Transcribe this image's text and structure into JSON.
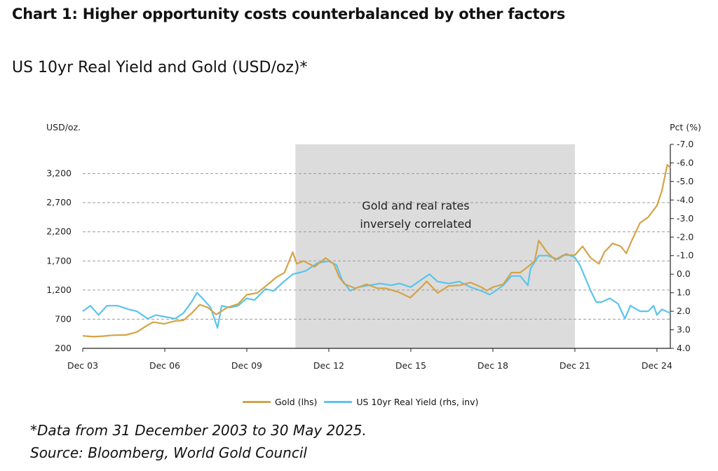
{
  "header": {
    "title": "Chart 1: Higher opportunity costs counterbalanced by other factors",
    "subtitle": "US 10yr Real Yield and Gold (USD/oz)*"
  },
  "footer": {
    "footnote": "*Data from 31 December 2003 to 30 May 2025.",
    "source": "Source: Bloomberg, World Gold Council"
  },
  "chart_data": {
    "type": "line",
    "left_axis_label": "USD/oz.",
    "right_axis_label": "Pct (%)",
    "x_ticks": [
      "Dec 03",
      "Dec 06",
      "Dec 09",
      "Dec 12",
      "Dec 15",
      "Dec 18",
      "Dec 21",
      "Dec 24"
    ],
    "x_tick_years": [
      2003.92,
      2006.92,
      2009.92,
      2012.92,
      2015.92,
      2018.92,
      2021.92,
      2024.92
    ],
    "x_range": [
      2003.92,
      2025.41
    ],
    "ylim_left": [
      200,
      3700
    ],
    "y_ticks_left": [
      "200",
      "700",
      "1,200",
      "1,700",
      "2,200",
      "2,700",
      "3,200"
    ],
    "y_tick_values_left": [
      200,
      700,
      1200,
      1700,
      2200,
      2700,
      3200
    ],
    "ylim_right": [
      4.0,
      -7.0
    ],
    "y_ticks_right": [
      "4.0",
      "3.0",
      "2.0",
      "1.0",
      "0.0",
      "-1.0",
      "-2.0",
      "-3.0",
      "-4.0",
      "-5.0",
      "-6.0",
      "-7.0"
    ],
    "y_tick_values_right": [
      4,
      3,
      2,
      1,
      0,
      -1,
      -2,
      -3,
      -4,
      -5,
      -6,
      -7
    ],
    "right_axis_inverted": true,
    "grid": "horizontal dashed",
    "shaded_region": {
      "start": 2011.7,
      "end": 2021.92,
      "color": "#dcdcdc"
    },
    "annotation": {
      "lines": [
        "Gold and real rates",
        "inversely correlated"
      ],
      "x": 2016.1,
      "y_lhs": 2580
    },
    "legend_position": "bottom-center",
    "series": [
      {
        "name": "Gold (lhs)",
        "axis": "left",
        "color": "#d4a348",
        "points": [
          [
            2003.92,
            415
          ],
          [
            2004.3,
            400
          ],
          [
            2004.7,
            410
          ],
          [
            2005.0,
            425
          ],
          [
            2005.5,
            430
          ],
          [
            2005.9,
            480
          ],
          [
            2006.3,
            600
          ],
          [
            2006.5,
            650
          ],
          [
            2006.9,
            620
          ],
          [
            2007.3,
            670
          ],
          [
            2007.6,
            680
          ],
          [
            2007.9,
            800
          ],
          [
            2008.2,
            950
          ],
          [
            2008.5,
            900
          ],
          [
            2008.8,
            780
          ],
          [
            2009.2,
            900
          ],
          [
            2009.6,
            960
          ],
          [
            2009.92,
            1120
          ],
          [
            2010.3,
            1150
          ],
          [
            2010.7,
            1300
          ],
          [
            2011.0,
            1420
          ],
          [
            2011.3,
            1500
          ],
          [
            2011.6,
            1850
          ],
          [
            2011.75,
            1650
          ],
          [
            2012.0,
            1700
          ],
          [
            2012.4,
            1600
          ],
          [
            2012.8,
            1750
          ],
          [
            2013.1,
            1650
          ],
          [
            2013.3,
            1420
          ],
          [
            2013.5,
            1300
          ],
          [
            2013.9,
            1230
          ],
          [
            2014.3,
            1300
          ],
          [
            2014.7,
            1230
          ],
          [
            2015.0,
            1230
          ],
          [
            2015.5,
            1160
          ],
          [
            2015.9,
            1070
          ],
          [
            2016.3,
            1250
          ],
          [
            2016.5,
            1350
          ],
          [
            2016.9,
            1150
          ],
          [
            2017.3,
            1270
          ],
          [
            2017.7,
            1280
          ],
          [
            2018.1,
            1330
          ],
          [
            2018.5,
            1250
          ],
          [
            2018.7,
            1190
          ],
          [
            2018.92,
            1250
          ],
          [
            2019.3,
            1300
          ],
          [
            2019.6,
            1500
          ],
          [
            2019.92,
            1500
          ],
          [
            2020.2,
            1600
          ],
          [
            2020.45,
            1700
          ],
          [
            2020.6,
            2050
          ],
          [
            2020.9,
            1850
          ],
          [
            2021.2,
            1720
          ],
          [
            2021.5,
            1800
          ],
          [
            2021.92,
            1800
          ],
          [
            2022.2,
            1950
          ],
          [
            2022.5,
            1750
          ],
          [
            2022.8,
            1650
          ],
          [
            2023.0,
            1850
          ],
          [
            2023.3,
            2000
          ],
          [
            2023.6,
            1950
          ],
          [
            2023.8,
            1830
          ],
          [
            2024.0,
            2050
          ],
          [
            2024.3,
            2350
          ],
          [
            2024.6,
            2450
          ],
          [
            2024.92,
            2650
          ],
          [
            2025.1,
            2900
          ],
          [
            2025.3,
            3350
          ],
          [
            2025.41,
            3300
          ]
        ]
      },
      {
        "name": "US 10yr Real Yield (rhs, inv)",
        "axis": "right",
        "color": "#5bc4ec",
        "points": [
          [
            2003.92,
            2.0
          ],
          [
            2004.2,
            1.7
          ],
          [
            2004.5,
            2.2
          ],
          [
            2004.8,
            1.7
          ],
          [
            2005.2,
            1.7
          ],
          [
            2005.6,
            1.9
          ],
          [
            2005.9,
            2.0
          ],
          [
            2006.3,
            2.4
          ],
          [
            2006.6,
            2.2
          ],
          [
            2006.92,
            2.3
          ],
          [
            2007.3,
            2.4
          ],
          [
            2007.6,
            2.1
          ],
          [
            2007.9,
            1.5
          ],
          [
            2008.1,
            1.0
          ],
          [
            2008.3,
            1.3
          ],
          [
            2008.6,
            1.8
          ],
          [
            2008.85,
            2.9
          ],
          [
            2009.0,
            1.7
          ],
          [
            2009.3,
            1.8
          ],
          [
            2009.6,
            1.7
          ],
          [
            2009.92,
            1.3
          ],
          [
            2010.2,
            1.4
          ],
          [
            2010.6,
            0.8
          ],
          [
            2010.9,
            0.9
          ],
          [
            2011.2,
            0.5
          ],
          [
            2011.6,
            0.0
          ],
          [
            2011.9,
            -0.1
          ],
          [
            2012.1,
            -0.2
          ],
          [
            2012.5,
            -0.6
          ],
          [
            2012.92,
            -0.7
          ],
          [
            2013.2,
            -0.5
          ],
          [
            2013.4,
            0.3
          ],
          [
            2013.7,
            0.9
          ],
          [
            2014.0,
            0.7
          ],
          [
            2014.4,
            0.6
          ],
          [
            2014.8,
            0.5
          ],
          [
            2015.2,
            0.6
          ],
          [
            2015.5,
            0.5
          ],
          [
            2015.92,
            0.7
          ],
          [
            2016.3,
            0.3
          ],
          [
            2016.6,
            0.0
          ],
          [
            2016.9,
            0.4
          ],
          [
            2017.3,
            0.5
          ],
          [
            2017.7,
            0.4
          ],
          [
            2018.1,
            0.7
          ],
          [
            2018.5,
            0.9
          ],
          [
            2018.8,
            1.1
          ],
          [
            2018.92,
            1.0
          ],
          [
            2019.3,
            0.6
          ],
          [
            2019.6,
            0.1
          ],
          [
            2019.92,
            0.1
          ],
          [
            2020.2,
            0.6
          ],
          [
            2020.3,
            -0.3
          ],
          [
            2020.6,
            -1.0
          ],
          [
            2020.92,
            -1.0
          ],
          [
            2021.3,
            -0.8
          ],
          [
            2021.6,
            -1.1
          ],
          [
            2021.92,
            -0.9
          ],
          [
            2022.1,
            -0.5
          ],
          [
            2022.3,
            0.2
          ],
          [
            2022.5,
            0.9
          ],
          [
            2022.7,
            1.5
          ],
          [
            2022.9,
            1.5
          ],
          [
            2023.2,
            1.3
          ],
          [
            2023.5,
            1.6
          ],
          [
            2023.75,
            2.4
          ],
          [
            2023.95,
            1.7
          ],
          [
            2024.3,
            2.0
          ],
          [
            2024.6,
            2.0
          ],
          [
            2024.8,
            1.7
          ],
          [
            2024.92,
            2.2
          ],
          [
            2025.1,
            1.9
          ],
          [
            2025.41,
            2.1
          ]
        ]
      }
    ]
  }
}
